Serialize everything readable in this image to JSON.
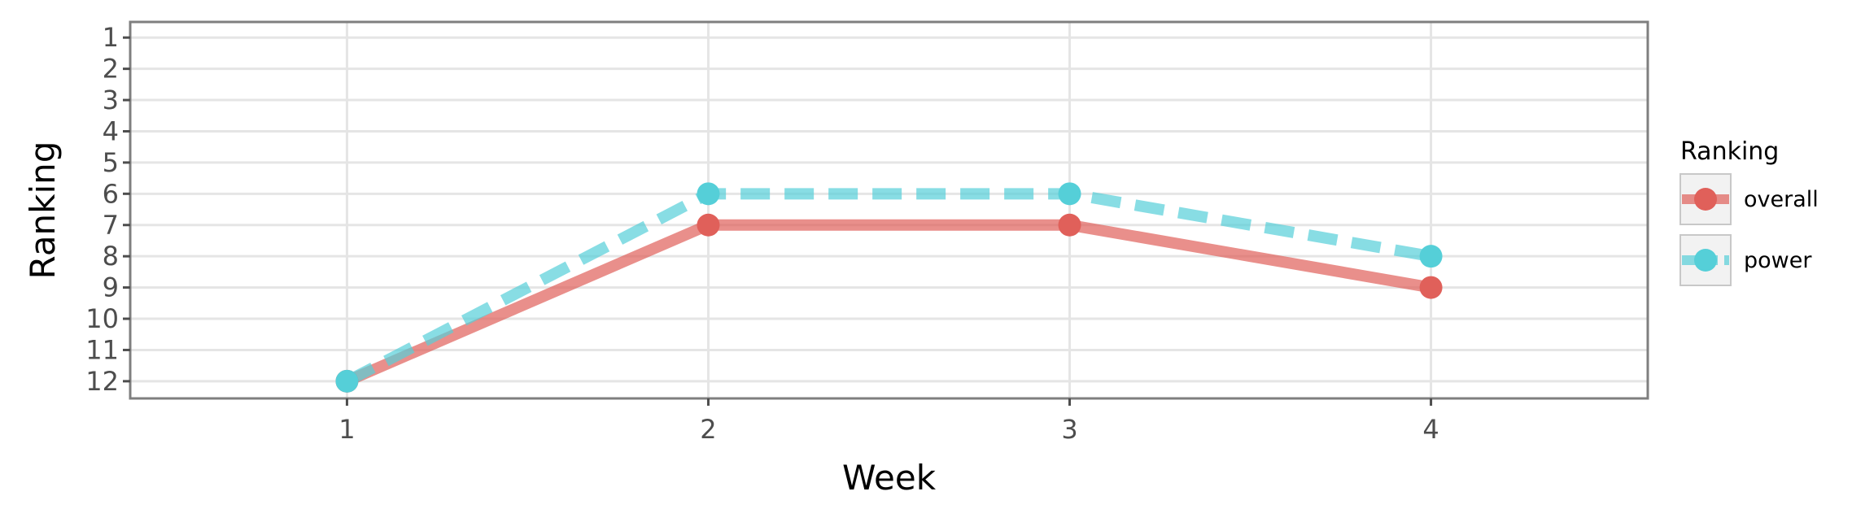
{
  "chart_data": {
    "type": "line",
    "title": "",
    "xlabel": "Week",
    "ylabel": "Ranking",
    "x": [
      1,
      2,
      3,
      4
    ],
    "x_ticks": [
      "1",
      "2",
      "3",
      "4"
    ],
    "xlim": [
      0.4,
      4.6
    ],
    "y_ticks": [
      "1",
      "2",
      "3",
      "4",
      "5",
      "6",
      "7",
      "8",
      "9",
      "10",
      "11",
      "12"
    ],
    "ylim": [
      12.55,
      0.5
    ],
    "y_reversed": true,
    "grid": true,
    "legend": {
      "title": "Ranking",
      "placement": "right"
    },
    "series": [
      {
        "name": "overall",
        "values": [
          12,
          7,
          7,
          9
        ],
        "color": "#e0605a",
        "line_style": "solid"
      },
      {
        "name": "power",
        "values": [
          12,
          6,
          6,
          8
        ],
        "color": "#55cfd8",
        "line_style": "dashed"
      }
    ]
  }
}
